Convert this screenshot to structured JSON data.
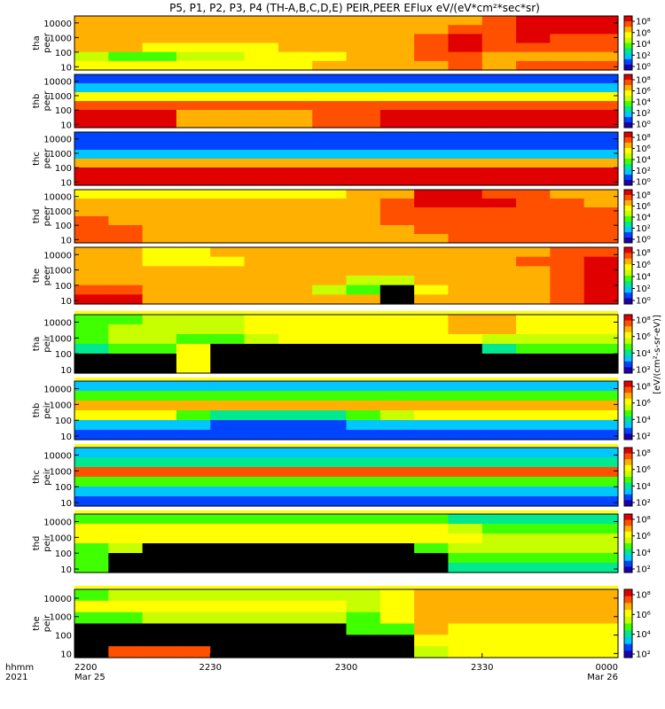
{
  "chart_data": {
    "type": "heatmap",
    "title": "P5, P1, P2, P3, P4 (TH-A,B,C,D,E) PEIR,PEER EFlux eV/(eV*cm²*sec*sr)",
    "x_axis": {
      "row_labels": [
        "hhmm",
        "2021"
      ],
      "ticks": [
        {
          "time": "2200",
          "date": "Mar 25"
        },
        {
          "time": "2230",
          "date": ""
        },
        {
          "time": "2300",
          "date": ""
        },
        {
          "time": "2330",
          "date": ""
        },
        {
          "time": "0000",
          "date": "Mar 26"
        }
      ],
      "range_minutes": [
        0,
        120
      ]
    },
    "y_ticks": [
      "10000",
      "1000",
      "100",
      "10"
    ],
    "y_scale": "log",
    "colorbar": {
      "scale": "log",
      "title": "[eV/(cm²‐s‐sr‐eV)]",
      "ticks_ion": [
        "10⁸",
        "10⁶",
        "10⁴",
        "10²"
      ],
      "ticks_electron": [
        "10⁸",
        "10⁶",
        "10⁴",
        "10²",
        "10⁰"
      ],
      "colors": [
        "#ffffff",
        "#000000",
        "#1a00b0",
        "#0044ff",
        "#00c8ff",
        "#00e890",
        "#40ff00",
        "#c8ff00",
        "#ffff00",
        "#ffb000",
        "#ff5000",
        "#e00000"
      ]
    },
    "panels": [
      {
        "probe": "tha",
        "product": "peer",
        "ylim": [
          6,
          30000
        ],
        "colorbar_ticks": "electron",
        "rows": [
          [
            9,
            9,
            9,
            9,
            9,
            9,
            9,
            9,
            9,
            9,
            9,
            9,
            10,
            11,
            11,
            11
          ],
          [
            9,
            9,
            9,
            9,
            9,
            9,
            9,
            9,
            9,
            9,
            9,
            10,
            10,
            11,
            11,
            11
          ],
          [
            9,
            9,
            9,
            9,
            9,
            9,
            9,
            9,
            9,
            9,
            10,
            11,
            10,
            11,
            10,
            10
          ],
          [
            9,
            9,
            8,
            8,
            8,
            8,
            9,
            9,
            9,
            9,
            10,
            11,
            10,
            10,
            10,
            10
          ],
          [
            7,
            6,
            6,
            7,
            7,
            8,
            8,
            8,
            9,
            9,
            10,
            10,
            9,
            9,
            9,
            9
          ],
          [
            8,
            8,
            8,
            8,
            8,
            8,
            8,
            9,
            9,
            9,
            9,
            10,
            9,
            10,
            10,
            10
          ]
        ]
      },
      {
        "probe": "thb",
        "product": "peer",
        "ylim": [
          6,
          30000
        ],
        "colorbar_ticks": "electron",
        "rows": [
          [
            3,
            3,
            3,
            3,
            3,
            3,
            3,
            3,
            3,
            3,
            3,
            3,
            3,
            3,
            3,
            3
          ],
          [
            4,
            4,
            4,
            4,
            4,
            4,
            4,
            4,
            4,
            4,
            4,
            4,
            4,
            4,
            4,
            4
          ],
          [
            8,
            8,
            8,
            8,
            8,
            8,
            8,
            8,
            8,
            8,
            8,
            8,
            8,
            8,
            8,
            8
          ],
          [
            10,
            10,
            10,
            10,
            10,
            10,
            10,
            10,
            10,
            10,
            10,
            10,
            10,
            10,
            10,
            10
          ],
          [
            11,
            11,
            11,
            9,
            9,
            9,
            9,
            10,
            10,
            11,
            11,
            11,
            11,
            11,
            11,
            11
          ],
          [
            11,
            11,
            11,
            9,
            9,
            9,
            9,
            10,
            10,
            11,
            11,
            11,
            11,
            11,
            11,
            11
          ]
        ]
      },
      {
        "probe": "thc",
        "product": "peer",
        "ylim": [
          6,
          30000
        ],
        "colorbar_ticks": "electron",
        "rows": [
          [
            3,
            3,
            3,
            3,
            3,
            3,
            3,
            3,
            3,
            3,
            3,
            3,
            3,
            3,
            3,
            3
          ],
          [
            3,
            3,
            3,
            3,
            3,
            3,
            3,
            3,
            3,
            3,
            3,
            3,
            3,
            3,
            3,
            3
          ],
          [
            4,
            4,
            4,
            4,
            4,
            4,
            4,
            4,
            4,
            4,
            4,
            4,
            4,
            4,
            4,
            4
          ],
          [
            9,
            9,
            9,
            9,
            9,
            9,
            9,
            9,
            9,
            9,
            9,
            9,
            9,
            9,
            9,
            9
          ],
          [
            11,
            11,
            11,
            11,
            11,
            11,
            11,
            11,
            11,
            11,
            11,
            11,
            11,
            11,
            11,
            11
          ],
          [
            11,
            11,
            11,
            11,
            11,
            11,
            11,
            11,
            11,
            11,
            11,
            11,
            11,
            11,
            11,
            11
          ]
        ]
      },
      {
        "probe": "thd",
        "product": "peer",
        "ylim": [
          6,
          30000
        ],
        "colorbar_ticks": "electron",
        "rows": [
          [
            8,
            8,
            8,
            8,
            8,
            8,
            8,
            8,
            9,
            9,
            11,
            11,
            10,
            10,
            9,
            9
          ],
          [
            9,
            9,
            9,
            9,
            9,
            9,
            9,
            9,
            9,
            10,
            11,
            11,
            11,
            10,
            10,
            9
          ],
          [
            9,
            9,
            9,
            9,
            9,
            9,
            9,
            9,
            9,
            10,
            10,
            10,
            10,
            10,
            10,
            10
          ],
          [
            10,
            9,
            9,
            9,
            9,
            9,
            9,
            9,
            9,
            10,
            10,
            10,
            10,
            10,
            10,
            10
          ],
          [
            10,
            10,
            9,
            9,
            9,
            9,
            9,
            9,
            9,
            9,
            10,
            10,
            10,
            10,
            10,
            10
          ],
          [
            10,
            10,
            9,
            9,
            9,
            9,
            9,
            9,
            9,
            9,
            9,
            10,
            10,
            10,
            10,
            10
          ]
        ]
      },
      {
        "probe": "the",
        "product": "peer",
        "ylim": [
          6,
          30000
        ],
        "colorbar_ticks": "electron",
        "rows": [
          [
            9,
            9,
            8,
            8,
            9,
            9,
            9,
            9,
            9,
            9,
            9,
            9,
            9,
            9,
            10,
            10
          ],
          [
            9,
            9,
            8,
            8,
            8,
            9,
            9,
            9,
            9,
            9,
            9,
            9,
            9,
            10,
            10,
            11
          ],
          [
            9,
            9,
            9,
            9,
            9,
            9,
            9,
            9,
            9,
            9,
            9,
            9,
            9,
            9,
            10,
            11
          ],
          [
            9,
            9,
            9,
            9,
            9,
            9,
            9,
            9,
            7,
            7,
            9,
            9,
            9,
            9,
            10,
            11
          ],
          [
            10,
            10,
            9,
            9,
            9,
            9,
            9,
            7,
            6,
            1,
            8,
            9,
            9,
            9,
            10,
            11
          ],
          [
            11,
            11,
            9,
            9,
            9,
            9,
            9,
            9,
            9,
            1,
            9,
            9,
            9,
            9,
            10,
            11
          ]
        ]
      },
      {
        "probe": "tha",
        "product": "peir",
        "ylim": [
          6,
          30000
        ],
        "colorbar_ticks": "ion",
        "rows": [
          [
            6,
            6,
            7,
            7,
            7,
            8,
            8,
            8,
            8,
            8,
            8,
            9,
            9,
            8,
            8,
            8
          ],
          [
            6,
            7,
            7,
            7,
            7,
            8,
            8,
            8,
            8,
            8,
            8,
            9,
            9,
            8,
            8,
            8
          ],
          [
            6,
            7,
            7,
            6,
            6,
            7,
            8,
            8,
            8,
            8,
            8,
            8,
            7,
            7,
            7,
            7
          ],
          [
            5,
            6,
            6,
            8,
            1,
            1,
            1,
            1,
            1,
            1,
            1,
            1,
            5,
            6,
            6,
            6
          ],
          [
            1,
            1,
            1,
            8,
            1,
            1,
            1,
            1,
            1,
            1,
            1,
            1,
            1,
            1,
            1,
            1
          ],
          [
            1,
            1,
            1,
            8,
            1,
            1,
            1,
            1,
            1,
            1,
            1,
            1,
            1,
            1,
            1,
            1
          ]
        ]
      },
      {
        "probe": "thb",
        "product": "peir",
        "ylim": [
          6,
          30000
        ],
        "colorbar_ticks": "ion",
        "rows": [
          [
            4,
            4,
            4,
            4,
            4,
            4,
            4,
            4,
            4,
            4,
            4,
            4,
            4,
            4,
            4,
            4
          ],
          [
            6,
            6,
            6,
            6,
            6,
            6,
            6,
            6,
            6,
            6,
            6,
            6,
            6,
            6,
            6,
            6
          ],
          [
            9,
            9,
            9,
            9,
            9,
            9,
            9,
            9,
            9,
            9,
            9,
            9,
            9,
            9,
            9,
            9
          ],
          [
            8,
            8,
            8,
            6,
            5,
            5,
            5,
            5,
            6,
            7,
            8,
            8,
            8,
            8,
            8,
            8
          ],
          [
            4,
            4,
            4,
            4,
            3,
            3,
            3,
            3,
            4,
            4,
            4,
            4,
            4,
            4,
            4,
            4
          ],
          [
            3,
            3,
            3,
            3,
            3,
            3,
            3,
            3,
            3,
            3,
            3,
            3,
            3,
            3,
            3,
            3
          ]
        ]
      },
      {
        "probe": "thc",
        "product": "peir",
        "ylim": [
          6,
          30000
        ],
        "colorbar_ticks": "ion",
        "rows": [
          [
            4,
            4,
            4,
            4,
            4,
            4,
            4,
            4,
            4,
            4,
            4,
            4,
            4,
            4,
            4,
            4
          ],
          [
            5,
            5,
            5,
            5,
            5,
            5,
            5,
            5,
            5,
            5,
            5,
            5,
            5,
            5,
            5,
            5
          ],
          [
            10,
            10,
            10,
            10,
            10,
            10,
            10,
            10,
            10,
            10,
            10,
            10,
            10,
            10,
            10,
            10
          ],
          [
            6,
            6,
            6,
            6,
            6,
            6,
            6,
            6,
            6,
            6,
            6,
            6,
            6,
            6,
            6,
            6
          ],
          [
            4,
            4,
            4,
            4,
            4,
            4,
            4,
            4,
            4,
            4,
            4,
            4,
            4,
            4,
            4,
            4
          ],
          [
            3,
            3,
            3,
            3,
            3,
            3,
            3,
            3,
            3,
            3,
            3,
            3,
            3,
            3,
            3,
            3
          ]
        ]
      },
      {
        "probe": "thd",
        "product": "peir",
        "ylim": [
          6,
          30000
        ],
        "colorbar_ticks": "ion",
        "rows": [
          [
            6,
            6,
            6,
            6,
            6,
            6,
            6,
            6,
            6,
            6,
            6,
            5,
            5,
            5,
            5,
            5
          ],
          [
            8,
            8,
            8,
            8,
            8,
            8,
            8,
            8,
            8,
            8,
            8,
            7,
            6,
            6,
            6,
            6
          ],
          [
            8,
            8,
            8,
            8,
            8,
            8,
            8,
            8,
            8,
            8,
            8,
            8,
            7,
            7,
            7,
            7
          ],
          [
            6,
            7,
            1,
            1,
            1,
            1,
            1,
            1,
            1,
            1,
            6,
            7,
            7,
            7,
            7,
            7
          ],
          [
            6,
            1,
            1,
            1,
            1,
            1,
            1,
            1,
            1,
            1,
            1,
            6,
            6,
            6,
            6,
            6
          ],
          [
            6,
            1,
            1,
            1,
            1,
            1,
            1,
            1,
            1,
            1,
            1,
            5,
            5,
            5,
            5,
            5
          ]
        ]
      },
      {
        "probe": "the",
        "product": "peir",
        "ylim": [
          6,
          30000
        ],
        "colorbar_ticks": "ion",
        "rows": [
          [
            6,
            7,
            7,
            7,
            7,
            7,
            7,
            7,
            7,
            8,
            9,
            9,
            9,
            9,
            9,
            9
          ],
          [
            8,
            8,
            8,
            8,
            8,
            8,
            8,
            8,
            7,
            8,
            9,
            9,
            9,
            9,
            9,
            9
          ],
          [
            6,
            6,
            7,
            7,
            7,
            7,
            7,
            7,
            6,
            8,
            9,
            9,
            9,
            9,
            9,
            9
          ],
          [
            1,
            1,
            1,
            1,
            1,
            1,
            1,
            1,
            6,
            6,
            9,
            8,
            8,
            8,
            8,
            8
          ],
          [
            1,
            1,
            1,
            1,
            1,
            1,
            1,
            1,
            1,
            1,
            8,
            8,
            8,
            8,
            8,
            8
          ],
          [
            1,
            10,
            10,
            10,
            1,
            1,
            1,
            1,
            1,
            1,
            7,
            8,
            8,
            8,
            8,
            8
          ]
        ]
      }
    ]
  }
}
